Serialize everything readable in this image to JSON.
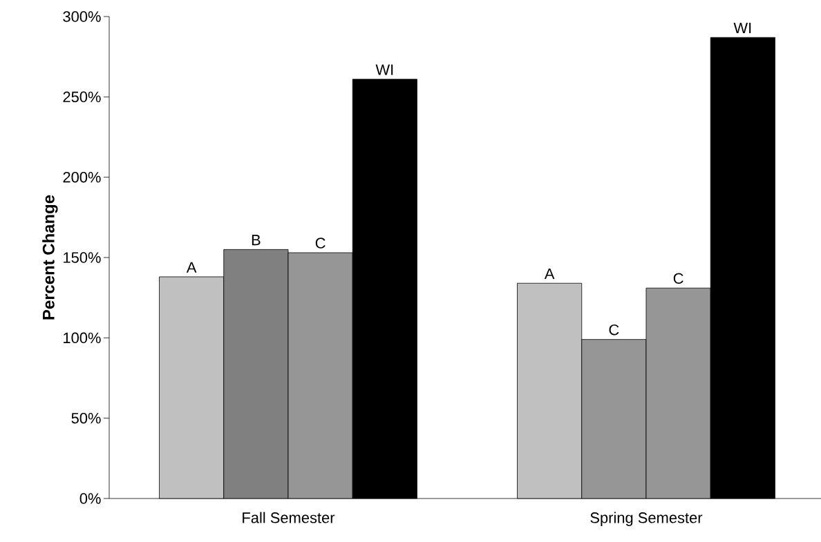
{
  "chart_data": {
    "type": "bar",
    "ylabel": "Percent Change",
    "categories": [
      "Fall Semester",
      "Spring Semester"
    ],
    "series": [
      {
        "colors": [
          "#c0c0c0",
          "#c0c0c0"
        ],
        "values": [
          138,
          134
        ],
        "value_labels": [
          "A",
          "A"
        ]
      },
      {
        "colors": [
          "#808080",
          "#969696"
        ],
        "values": [
          155,
          99
        ],
        "value_labels": [
          "B",
          "C"
        ]
      },
      {
        "colors": [
          "#969696",
          "#969696"
        ],
        "values": [
          153,
          131
        ],
        "value_labels": [
          "C",
          "C"
        ]
      },
      {
        "colors": [
          "#000000",
          "#000000"
        ],
        "values": [
          261,
          287
        ],
        "value_labels": [
          "WI",
          "WI"
        ]
      }
    ],
    "ylim": [
      0,
      300
    ],
    "yticks": [
      {
        "value": 0,
        "label": "0%"
      },
      {
        "value": 50,
        "label": "50%"
      },
      {
        "value": 100,
        "label": "100%"
      },
      {
        "value": 150,
        "label": "150%"
      },
      {
        "value": 200,
        "label": "200%"
      },
      {
        "value": 250,
        "label": "250%"
      },
      {
        "value": 300,
        "label": "300%"
      }
    ]
  }
}
